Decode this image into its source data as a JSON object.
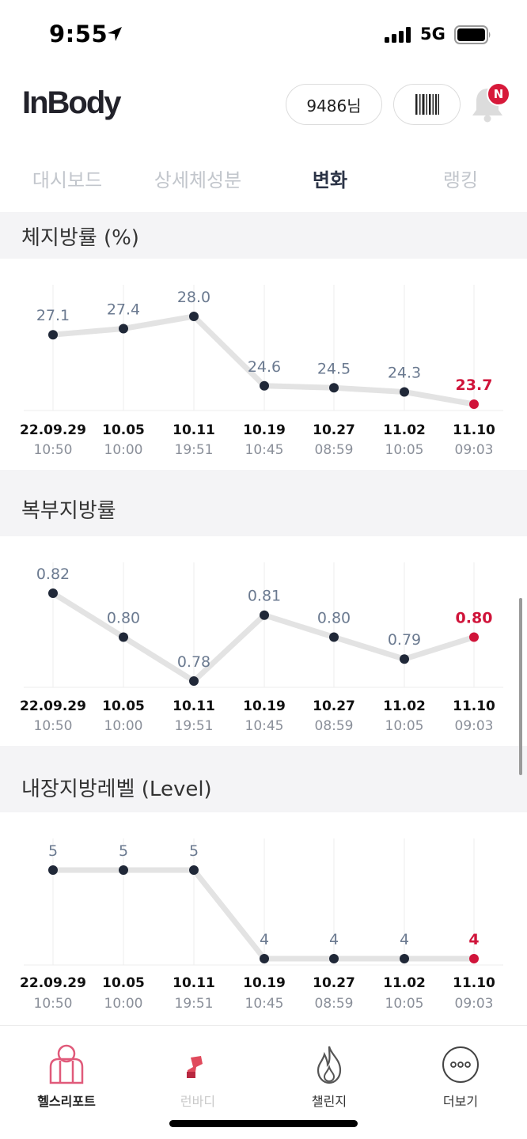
{
  "status_bar": {
    "time": "9:55",
    "network": "5G"
  },
  "header": {
    "logo": "InBody",
    "user_label": "9486님",
    "notification_badge": "N"
  },
  "tabs": [
    {
      "label": "대시보드",
      "active": false
    },
    {
      "label": "상세체성분",
      "active": false
    },
    {
      "label": "변화",
      "active": true
    },
    {
      "label": "랭킹",
      "active": false
    }
  ],
  "colors": {
    "line": "#e3e3e3",
    "point": "#202838",
    "value": "#6b7a90",
    "highlight": "#d0143a",
    "grid": "#eeeeee"
  },
  "chart_data": [
    {
      "type": "line",
      "title": "체지방률 (%)",
      "dates": [
        "22.09.29",
        "10.05",
        "10.11",
        "10.19",
        "10.27",
        "11.02",
        "11.10"
      ],
      "times": [
        "10:50",
        "10:00",
        "19:51",
        "10:45",
        "08:59",
        "10:05",
        "09:03"
      ],
      "values": [
        27.1,
        27.4,
        28.0,
        24.6,
        24.5,
        24.3,
        23.7
      ],
      "labels": [
        "27.1",
        "27.4",
        "28.0",
        "24.6",
        "24.5",
        "24.3",
        "23.7"
      ],
      "highlight_index": 6
    },
    {
      "type": "line",
      "title": "복부지방률",
      "dates": [
        "22.09.29",
        "10.05",
        "10.11",
        "10.19",
        "10.27",
        "11.02",
        "11.10"
      ],
      "times": [
        "10:50",
        "10:00",
        "19:51",
        "10:45",
        "08:59",
        "10:05",
        "09:03"
      ],
      "values": [
        0.82,
        0.8,
        0.78,
        0.81,
        0.8,
        0.79,
        0.8
      ],
      "labels": [
        "0.82",
        "0.80",
        "0.78",
        "0.81",
        "0.80",
        "0.79",
        "0.80"
      ],
      "highlight_index": 6
    },
    {
      "type": "line",
      "title": "내장지방레벨 (Level)",
      "dates": [
        "22.09.29",
        "10.05",
        "10.11",
        "10.19",
        "10.27",
        "11.02",
        "11.10"
      ],
      "times": [
        "10:50",
        "10:00",
        "19:51",
        "10:45",
        "08:59",
        "10:05",
        "09:03"
      ],
      "values": [
        5,
        5,
        5,
        4,
        4,
        4,
        4
      ],
      "labels": [
        "5",
        "5",
        "5",
        "4",
        "4",
        "4",
        "4"
      ],
      "highlight_index": 6
    }
  ],
  "bottom_nav": [
    {
      "label": "헬스리포트",
      "icon": "health-report-icon",
      "active": true
    },
    {
      "label": "런바디",
      "icon": "runbody-icon",
      "active": false
    },
    {
      "label": "챌린지",
      "icon": "challenge-flame-icon",
      "active": false
    },
    {
      "label": "더보기",
      "icon": "more-icon",
      "active": false
    }
  ]
}
